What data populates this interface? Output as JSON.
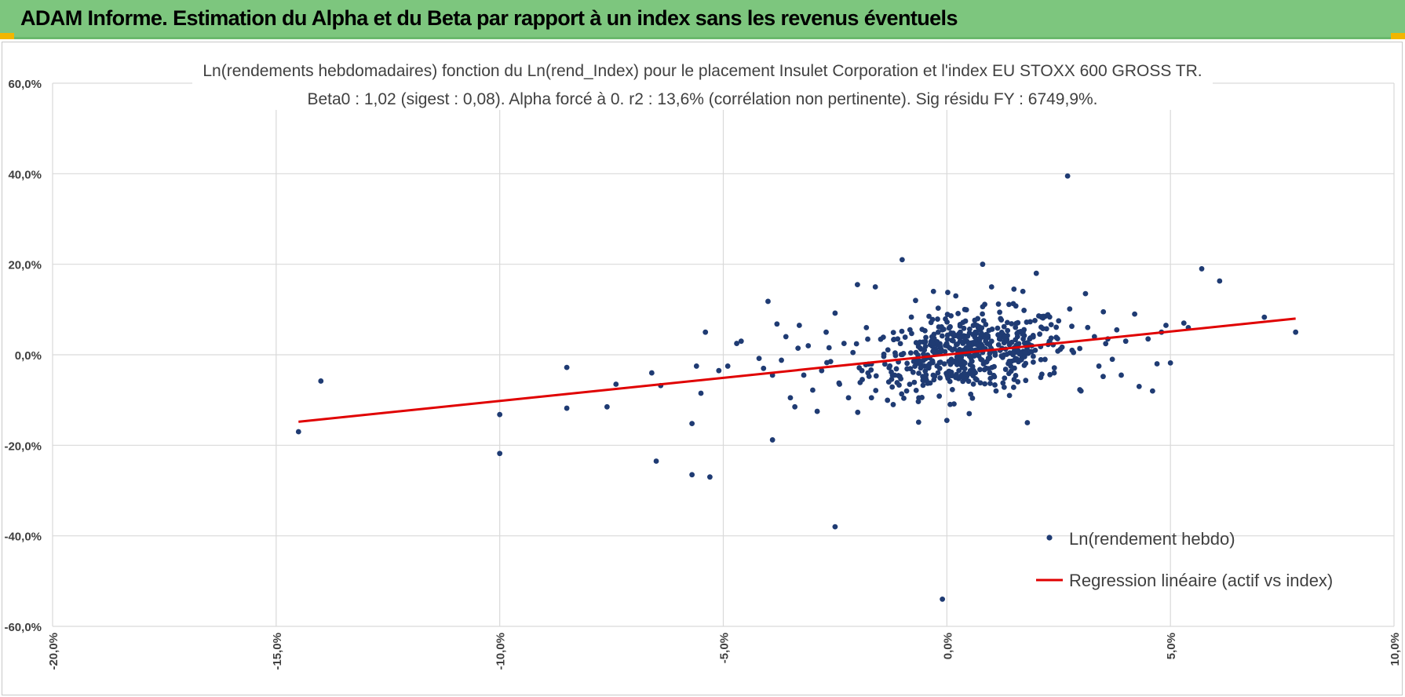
{
  "header": {
    "title": "ADAM Informe. Estimation du Alpha et du Beta par rapport à un index sans les revenus éventuels"
  },
  "colors": {
    "header_bg": "#7dc67e",
    "corner_accent": "#f2b600",
    "points": "#1f3b73",
    "regression": "#e00000",
    "grid": "#d9d9d9"
  },
  "chart_data": {
    "type": "scatter",
    "title": "Ln(rendements hebdomadaires) fonction du Ln(rend_Index) pour le placement Insulet Corporation et l'index EU STOXX 600 GROSS TR.",
    "subtitle": "Beta0 : 1,02 (sigest : 0,08).  Alpha forcé à 0. r2 : 13,6% (corrélation non pertinente). Sig résidu FY : 6749,9%.",
    "xlabel": "",
    "ylabel": "",
    "xlim": [
      -0.2,
      0.1
    ],
    "ylim": [
      -0.6,
      0.6
    ],
    "x_ticks": [
      -0.2,
      -0.15,
      -0.1,
      -0.05,
      0.0,
      0.05,
      0.1
    ],
    "x_tick_labels": [
      "-20,0%",
      "-15,0%",
      "-10,0%",
      "-5,0%",
      "0,0%",
      "5,0%",
      "10,0%"
    ],
    "y_ticks": [
      0.6,
      0.4,
      0.2,
      0.0,
      -0.2,
      -0.4,
      -0.6
    ],
    "y_tick_labels": [
      "60,0%",
      "40,0%",
      "20,0%",
      "0,0%",
      "-20,0%",
      "-40,0%",
      "-60,0%"
    ],
    "grid": true,
    "legend_position": "bottom-right",
    "series": [
      {
        "name": "Ln(rendement hebdo)",
        "kind": "scatter",
        "color": "#1f3b73",
        "points": [
          [
            -0.145,
            -0.17
          ],
          [
            -0.14,
            -0.058
          ],
          [
            -0.1,
            -0.218
          ],
          [
            -0.1,
            -0.132
          ],
          [
            -0.085,
            -0.028
          ],
          [
            -0.085,
            -0.118
          ],
          [
            -0.076,
            -0.115
          ],
          [
            -0.074,
            -0.065
          ],
          [
            -0.066,
            -0.04
          ],
          [
            -0.065,
            -0.235
          ],
          [
            -0.064,
            -0.068
          ],
          [
            -0.057,
            -0.265
          ],
          [
            -0.057,
            -0.152
          ],
          [
            -0.056,
            -0.025
          ],
          [
            -0.055,
            -0.085
          ],
          [
            -0.054,
            0.05
          ],
          [
            -0.053,
            -0.27
          ],
          [
            -0.051,
            -0.035
          ],
          [
            -0.049,
            -0.025
          ],
          [
            -0.047,
            0.025
          ],
          [
            -0.046,
            0.03
          ],
          [
            -0.042,
            -0.008
          ],
          [
            -0.041,
            -0.03
          ],
          [
            -0.039,
            -0.045
          ],
          [
            -0.04,
            0.118
          ],
          [
            -0.039,
            -0.188
          ],
          [
            -0.038,
            0.068
          ],
          [
            -0.037,
            -0.012
          ],
          [
            -0.036,
            0.04
          ],
          [
            -0.035,
            -0.095
          ],
          [
            -0.034,
            -0.115
          ],
          [
            -0.033,
            0.065
          ],
          [
            -0.032,
            -0.045
          ],
          [
            -0.031,
            0.02
          ],
          [
            -0.03,
            -0.078
          ],
          [
            -0.029,
            -0.125
          ],
          [
            -0.028,
            -0.035
          ],
          [
            -0.027,
            0.05
          ],
          [
            -0.026,
            -0.015
          ],
          [
            -0.025,
            -0.38
          ],
          [
            -0.025,
            0.092
          ],
          [
            -0.024,
            -0.065
          ],
          [
            -0.023,
            0.025
          ],
          [
            -0.022,
            -0.095
          ],
          [
            -0.021,
            0.005
          ],
          [
            -0.02,
            0.155
          ],
          [
            -0.019,
            -0.035
          ],
          [
            -0.018,
            0.06
          ],
          [
            -0.016,
            0.15
          ],
          [
            -0.013,
            -0.06
          ],
          [
            -0.012,
            -0.11
          ],
          [
            -0.011,
            0.035
          ],
          [
            -0.01,
            0.21
          ],
          [
            -0.009,
            -0.08
          ],
          [
            -0.007,
            0.12
          ],
          [
            -0.006,
            0.015
          ],
          [
            -0.005,
            -0.025
          ],
          [
            -0.004,
            0.085
          ],
          [
            -0.003,
            0.14
          ],
          [
            -0.002,
            -0.04
          ],
          [
            -0.001,
            -0.54
          ],
          [
            -0.001,
            0.055
          ],
          [
            0.0,
            -0.145
          ],
          [
            0.001,
            -0.01
          ],
          [
            0.002,
            0.13
          ],
          [
            0.003,
            0.05
          ],
          [
            0.004,
            0.1
          ],
          [
            0.005,
            -0.13
          ],
          [
            0.006,
            -0.035
          ],
          [
            0.007,
            0.06
          ],
          [
            0.008,
            0.2
          ],
          [
            0.009,
            0.025
          ],
          [
            0.01,
            0.15
          ],
          [
            0.011,
            -0.08
          ],
          [
            0.012,
            0.08
          ],
          [
            0.013,
            0.03
          ],
          [
            0.014,
            -0.09
          ],
          [
            0.015,
            0.145
          ],
          [
            0.016,
            0.05
          ],
          [
            0.017,
            0.14
          ],
          [
            0.018,
            -0.15
          ],
          [
            0.019,
            0.02
          ],
          [
            0.02,
            0.18
          ],
          [
            0.021,
            -0.05
          ],
          [
            0.022,
            0.085
          ],
          [
            0.023,
            0.03
          ],
          [
            0.024,
            -0.04
          ],
          [
            0.025,
            0.075
          ],
          [
            0.027,
            0.395
          ],
          [
            0.028,
            0.01
          ],
          [
            0.03,
            -0.08
          ],
          [
            0.031,
            0.135
          ],
          [
            0.033,
            0.04
          ],
          [
            0.034,
            -0.025
          ],
          [
            0.035,
            0.095
          ],
          [
            0.036,
            0.035
          ],
          [
            0.037,
            -0.01
          ],
          [
            0.038,
            0.055
          ],
          [
            0.039,
            -0.045
          ],
          [
            0.04,
            0.03
          ],
          [
            0.042,
            0.09
          ],
          [
            0.043,
            -0.07
          ],
          [
            0.045,
            0.035
          ],
          [
            0.046,
            -0.08
          ],
          [
            0.047,
            -0.02
          ],
          [
            0.048,
            0.05
          ],
          [
            0.049,
            0.065
          ],
          [
            0.05,
            -0.018
          ],
          [
            0.053,
            0.07
          ],
          [
            0.054,
            0.06
          ],
          [
            0.057,
            0.19
          ],
          [
            0.061,
            0.163
          ],
          [
            0.071,
            0.083
          ],
          [
            0.078,
            0.05
          ]
        ]
      },
      {
        "name": "Regression linéaire (actif vs index)",
        "kind": "line",
        "color": "#e00000",
        "points": [
          [
            -0.145,
            -0.148
          ],
          [
            0.078,
            0.08
          ]
        ]
      }
    ]
  }
}
